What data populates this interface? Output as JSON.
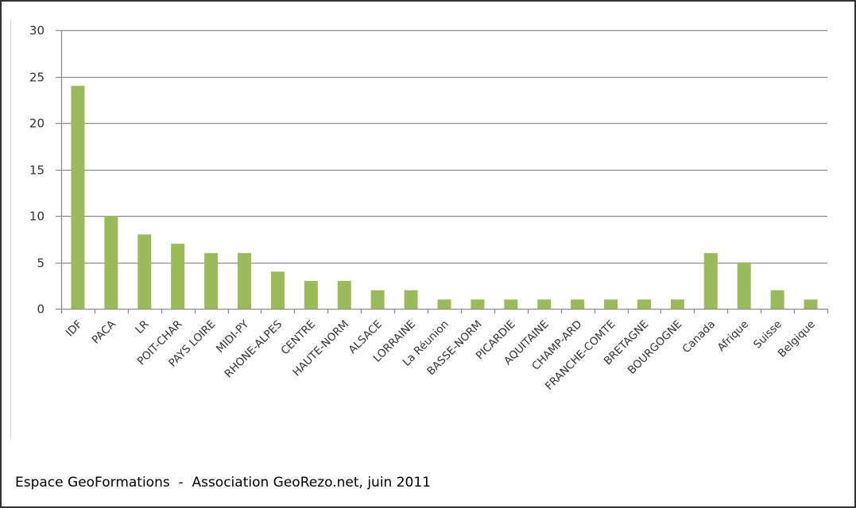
{
  "chart_data": {
    "type": "bar",
    "title": "",
    "xlabel": "",
    "ylabel": "",
    "ylim": [
      0,
      30
    ],
    "yticks": [
      0,
      5,
      10,
      15,
      20,
      25,
      30
    ],
    "grid": true,
    "legend": "none",
    "bar_color": "#9BBB59",
    "categories": [
      "IDF",
      "PACA",
      "LR",
      "POIT-CHAR",
      "PAYS LOIRE",
      "MIDI-PY",
      "RHONE-ALPES",
      "CENTRE",
      "HAUTE-NORM",
      "ALSACE",
      "LORRAINE",
      "La Réunion",
      "BASSE-NORM",
      "PICARDIE",
      "AQUITAINE",
      "CHAMP-ARD",
      "FRANCHE-COMTE",
      "BRETAGNE",
      "BOURGOGNE",
      "Canada",
      "Afrique",
      "Suisse",
      "Belgique"
    ],
    "values": [
      24,
      10,
      8,
      7,
      6,
      6,
      4,
      3,
      3,
      2,
      2,
      1,
      1,
      1,
      1,
      1,
      1,
      1,
      1,
      6,
      5,
      2,
      1
    ]
  },
  "footer": "Espace GeoFormations  -  Association GeoRezo.net, juin 2011"
}
